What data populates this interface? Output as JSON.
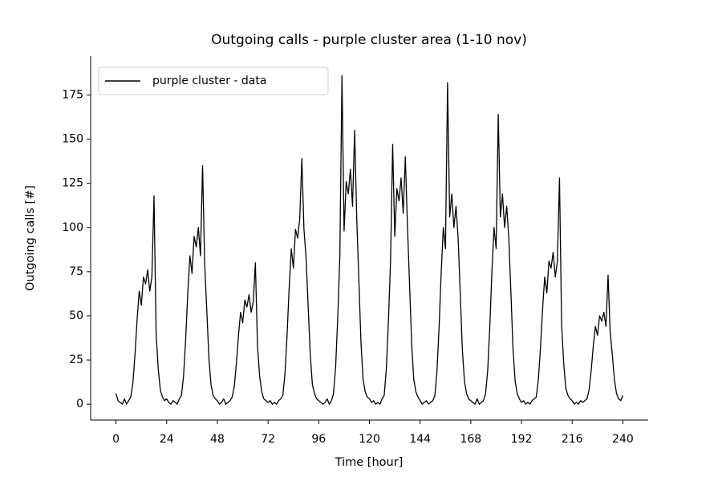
{
  "chart_data": {
    "type": "line",
    "title": "Outgoing calls - purple cluster area (1-10 nov)",
    "xlabel": "Time [hour]",
    "ylabel": "Outgoing calls [#]",
    "legend": "upper left",
    "xlim": [
      -12,
      252
    ],
    "ylim": [
      -9,
      197
    ],
    "xticks": [
      0,
      24,
      48,
      72,
      96,
      120,
      144,
      168,
      192,
      216,
      240
    ],
    "yticks": [
      0,
      25,
      50,
      75,
      100,
      125,
      150,
      175
    ],
    "x": [
      0,
      1,
      2,
      3,
      4,
      5,
      6,
      7,
      8,
      9,
      10,
      11,
      12,
      13,
      14,
      15,
      16,
      17,
      18,
      19,
      20,
      21,
      22,
      23,
      24,
      25,
      26,
      27,
      28,
      29,
      30,
      31,
      32,
      33,
      34,
      35,
      36,
      37,
      38,
      39,
      40,
      41,
      42,
      43,
      44,
      45,
      46,
      47,
      48,
      49,
      50,
      51,
      52,
      53,
      54,
      55,
      56,
      57,
      58,
      59,
      60,
      61,
      62,
      63,
      64,
      65,
      66,
      67,
      68,
      69,
      70,
      71,
      72,
      73,
      74,
      75,
      76,
      77,
      78,
      79,
      80,
      81,
      82,
      83,
      84,
      85,
      86,
      87,
      88,
      89,
      90,
      91,
      92,
      93,
      94,
      95,
      96,
      97,
      98,
      99,
      100,
      101,
      102,
      103,
      104,
      105,
      106,
      107,
      108,
      109,
      110,
      111,
      112,
      113,
      114,
      115,
      116,
      117,
      118,
      119,
      120,
      121,
      122,
      123,
      124,
      125,
      126,
      127,
      128,
      129,
      130,
      131,
      132,
      133,
      134,
      135,
      136,
      137,
      138,
      139,
      140,
      141,
      142,
      143,
      144,
      145,
      146,
      147,
      148,
      149,
      150,
      151,
      152,
      153,
      154,
      155,
      156,
      157,
      158,
      159,
      160,
      161,
      162,
      163,
      164,
      165,
      166,
      167,
      168,
      169,
      170,
      171,
      172,
      173,
      174,
      175,
      176,
      177,
      178,
      179,
      180,
      181,
      182,
      183,
      184,
      185,
      186,
      187,
      188,
      189,
      190,
      191,
      192,
      193,
      194,
      195,
      196,
      197,
      198,
      199,
      200,
      201,
      202,
      203,
      204,
      205,
      206,
      207,
      208,
      209,
      210,
      211,
      212,
      213,
      214,
      215,
      216,
      217,
      218,
      219,
      220,
      221,
      222,
      223,
      224,
      225,
      226,
      227,
      228,
      229,
      230,
      231,
      232,
      233,
      234,
      235,
      236,
      237,
      238,
      239,
      240
    ],
    "series": [
      {
        "name": "purple cluster - data",
        "color": "#000000",
        "values": [
          6,
          2,
          1,
          0,
          3,
          0,
          2,
          4,
          12,
          28,
          48,
          64,
          56,
          72,
          68,
          76,
          64,
          72,
          118,
          40,
          20,
          8,
          4,
          2,
          3,
          1,
          0,
          2,
          1,
          0,
          3,
          5,
          16,
          37,
          63,
          84,
          74,
          95,
          89,
          100,
          84,
          135,
          79,
          53,
          26,
          11,
          5,
          3,
          2,
          0,
          1,
          3,
          0,
          1,
          2,
          4,
          10,
          23,
          39,
          52,
          46,
          59,
          55,
          62,
          52,
          58,
          80,
          33,
          16,
          7,
          3,
          2,
          1,
          2,
          0,
          1,
          0,
          2,
          3,
          5,
          17,
          39,
          66,
          88,
          77,
          99,
          94,
          105,
          139,
          99,
          83,
          55,
          28,
          11,
          6,
          3,
          2,
          1,
          0,
          1,
          3,
          0,
          2,
          6,
          21,
          49,
          84,
          186,
          98,
          126,
          119,
          133,
          112,
          155,
          105,
          70,
          35,
          14,
          7,
          4,
          3,
          1,
          2,
          0,
          1,
          0,
          3,
          5,
          20,
          47,
          81,
          147,
          95,
          122,
          115,
          128,
          108,
          140,
          101,
          68,
          34,
          14,
          7,
          4,
          2,
          0,
          1,
          2,
          0,
          1,
          2,
          5,
          19,
          44,
          75,
          100,
          88,
          182,
          106,
          119,
          100,
          112,
          94,
          63,
          31,
          13,
          6,
          3,
          2,
          1,
          0,
          3,
          0,
          1,
          2,
          6,
          19,
          44,
          75,
          100,
          88,
          164,
          106,
          119,
          100,
          112,
          94,
          63,
          31,
          13,
          6,
          3,
          1,
          2,
          0,
          1,
          0,
          2,
          3,
          4,
          14,
          32,
          54,
          72,
          63,
          81,
          77,
          86,
          72,
          81,
          128,
          45,
          23,
          9,
          5,
          3,
          2,
          0,
          1,
          0,
          2,
          1,
          2,
          3,
          8,
          19,
          33,
          44,
          39,
          50,
          47,
          52,
          44,
          73,
          41,
          28,
          14,
          6,
          3,
          2,
          5
        ]
      }
    ]
  }
}
